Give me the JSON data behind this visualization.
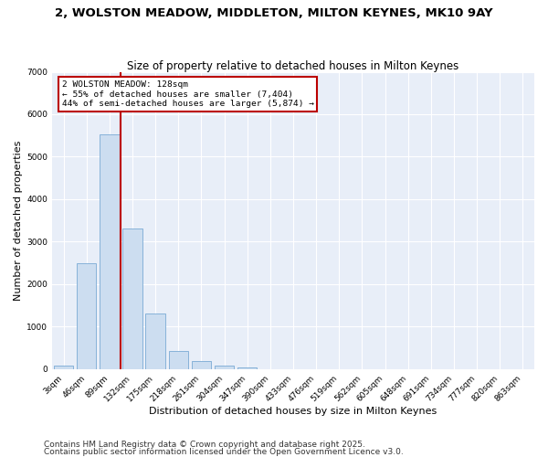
{
  "title": "2, WOLSTON MEADOW, MIDDLETON, MILTON KEYNES, MK10 9AY",
  "subtitle": "Size of property relative to detached houses in Milton Keynes",
  "xlabel": "Distribution of detached houses by size in Milton Keynes",
  "ylabel": "Number of detached properties",
  "bar_color": "#ccddf0",
  "bar_edge_color": "#7aaad4",
  "categories": [
    "3sqm",
    "46sqm",
    "89sqm",
    "132sqm",
    "175sqm",
    "218sqm",
    "261sqm",
    "304sqm",
    "347sqm",
    "390sqm",
    "433sqm",
    "476sqm",
    "519sqm",
    "562sqm",
    "605sqm",
    "648sqm",
    "691sqm",
    "734sqm",
    "777sqm",
    "820sqm",
    "863sqm"
  ],
  "values": [
    75,
    2500,
    5520,
    3320,
    1300,
    430,
    200,
    80,
    50,
    0,
    0,
    0,
    0,
    0,
    0,
    0,
    0,
    0,
    0,
    0,
    0
  ],
  "vline_color": "#bb0000",
  "vline_x_index": 2.5,
  "annotation_line1": "2 WOLSTON MEADOW: 128sqm",
  "annotation_line2": "← 55% of detached houses are smaller (7,404)",
  "annotation_line3": "44% of semi-detached houses are larger (5,874) →",
  "ylim": [
    0,
    7000
  ],
  "yticks": [
    0,
    1000,
    2000,
    3000,
    4000,
    5000,
    6000,
    7000
  ],
  "bg_color": "#e8eef8",
  "grid_color": "#ffffff",
  "footer1": "Contains HM Land Registry data © Crown copyright and database right 2025.",
  "footer2": "Contains public sector information licensed under the Open Government Licence v3.0.",
  "title_fontsize": 9.5,
  "subtitle_fontsize": 8.5,
  "axis_label_fontsize": 8,
  "tick_fontsize": 6.5,
  "footer_fontsize": 6.5
}
